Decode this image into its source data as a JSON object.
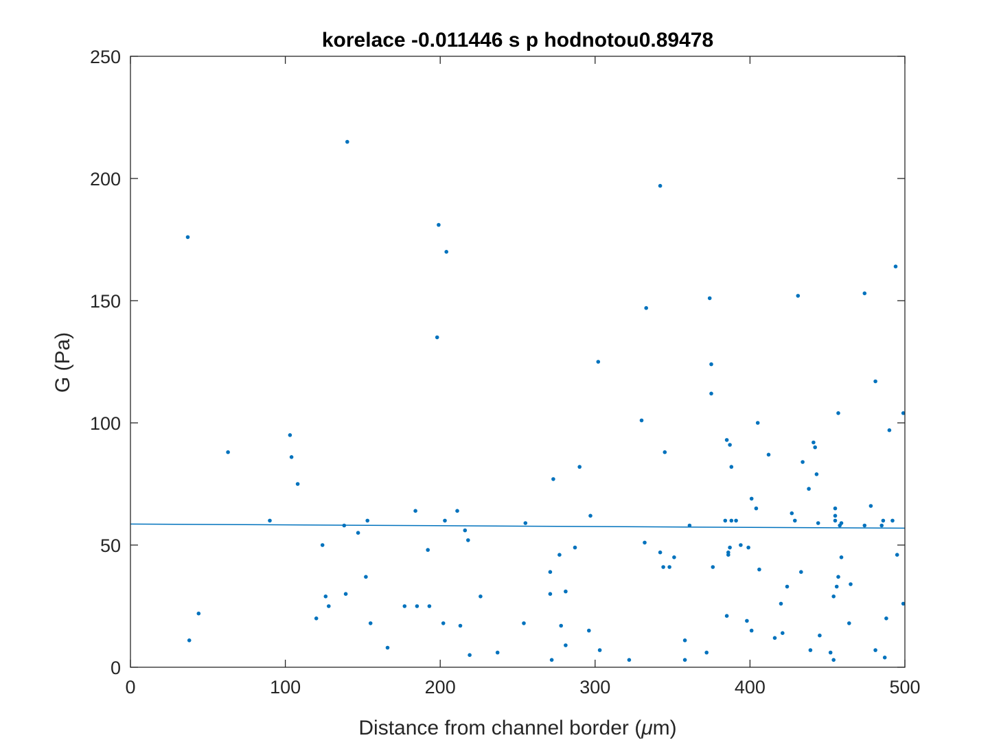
{
  "chart_data": {
    "type": "scatter",
    "title": "korelace -0.011446 s p hodnotou0.89478",
    "xlabel_pre": "Distance from channel border (",
    "xlabel_mu": "μ",
    "xlabel_post": "m)",
    "ylabel": "G (Pa)",
    "xlim": [
      0,
      500
    ],
    "ylim": [
      0,
      250
    ],
    "xticks": [
      0,
      100,
      200,
      300,
      400,
      500
    ],
    "yticks": [
      0,
      50,
      100,
      150,
      200,
      250
    ],
    "grid": false,
    "colors": {
      "points": "#0072bd",
      "fit_line": "#0072bd",
      "axes": "#262626"
    },
    "fit_line": {
      "x": [
        0,
        500
      ],
      "y": [
        58.6,
        56.9
      ]
    },
    "points": [
      {
        "x": 37,
        "y": 176
      },
      {
        "x": 38,
        "y": 11
      },
      {
        "x": 44,
        "y": 22
      },
      {
        "x": 63,
        "y": 88
      },
      {
        "x": 90,
        "y": 60
      },
      {
        "x": 103,
        "y": 95
      },
      {
        "x": 104,
        "y": 86
      },
      {
        "x": 108,
        "y": 75
      },
      {
        "x": 120,
        "y": 20
      },
      {
        "x": 124,
        "y": 50
      },
      {
        "x": 126,
        "y": 29
      },
      {
        "x": 128,
        "y": 25
      },
      {
        "x": 138,
        "y": 58
      },
      {
        "x": 139,
        "y": 30
      },
      {
        "x": 140,
        "y": 215
      },
      {
        "x": 147,
        "y": 55
      },
      {
        "x": 152,
        "y": 37
      },
      {
        "x": 153,
        "y": 60
      },
      {
        "x": 155,
        "y": 18
      },
      {
        "x": 166,
        "y": 8
      },
      {
        "x": 177,
        "y": 25
      },
      {
        "x": 184,
        "y": 64
      },
      {
        "x": 185,
        "y": 25
      },
      {
        "x": 192,
        "y": 48
      },
      {
        "x": 193,
        "y": 25
      },
      {
        "x": 198,
        "y": 135
      },
      {
        "x": 199,
        "y": 181
      },
      {
        "x": 202,
        "y": 18
      },
      {
        "x": 203,
        "y": 60
      },
      {
        "x": 204,
        "y": 170
      },
      {
        "x": 211,
        "y": 64
      },
      {
        "x": 213,
        "y": 17
      },
      {
        "x": 216,
        "y": 56
      },
      {
        "x": 218,
        "y": 52
      },
      {
        "x": 219,
        "y": 5
      },
      {
        "x": 226,
        "y": 29
      },
      {
        "x": 237,
        "y": 6
      },
      {
        "x": 255,
        "y": 59
      },
      {
        "x": 254,
        "y": 18
      },
      {
        "x": 271,
        "y": 39
      },
      {
        "x": 271,
        "y": 30
      },
      {
        "x": 272,
        "y": 3
      },
      {
        "x": 273,
        "y": 77
      },
      {
        "x": 277,
        "y": 46
      },
      {
        "x": 278,
        "y": 17
      },
      {
        "x": 281,
        "y": 31
      },
      {
        "x": 281,
        "y": 9
      },
      {
        "x": 287,
        "y": 49
      },
      {
        "x": 290,
        "y": 82
      },
      {
        "x": 296,
        "y": 15
      },
      {
        "x": 297,
        "y": 62
      },
      {
        "x": 302,
        "y": 125
      },
      {
        "x": 303,
        "y": 7
      },
      {
        "x": 322,
        "y": 3
      },
      {
        "x": 330,
        "y": 101
      },
      {
        "x": 332,
        "y": 51
      },
      {
        "x": 333,
        "y": 147
      },
      {
        "x": 342,
        "y": 197
      },
      {
        "x": 342,
        "y": 47
      },
      {
        "x": 344,
        "y": 41
      },
      {
        "x": 345,
        "y": 88
      },
      {
        "x": 348,
        "y": 41
      },
      {
        "x": 351,
        "y": 45
      },
      {
        "x": 358,
        "y": 3
      },
      {
        "x": 358,
        "y": 11
      },
      {
        "x": 361,
        "y": 58
      },
      {
        "x": 372,
        "y": 6
      },
      {
        "x": 374,
        "y": 151
      },
      {
        "x": 375,
        "y": 124
      },
      {
        "x": 375,
        "y": 112
      },
      {
        "x": 376,
        "y": 41
      },
      {
        "x": 384,
        "y": 60
      },
      {
        "x": 385,
        "y": 21
      },
      {
        "x": 385,
        "y": 93
      },
      {
        "x": 386,
        "y": 46
      },
      {
        "x": 386,
        "y": 47
      },
      {
        "x": 387,
        "y": 91
      },
      {
        "x": 387,
        "y": 49
      },
      {
        "x": 388,
        "y": 82
      },
      {
        "x": 388,
        "y": 60
      },
      {
        "x": 391,
        "y": 60
      },
      {
        "x": 394,
        "y": 50
      },
      {
        "x": 398,
        "y": 19
      },
      {
        "x": 399,
        "y": 49
      },
      {
        "x": 401,
        "y": 69
      },
      {
        "x": 401,
        "y": 15
      },
      {
        "x": 404,
        "y": 65
      },
      {
        "x": 405,
        "y": 100
      },
      {
        "x": 406,
        "y": 40
      },
      {
        "x": 412,
        "y": 87
      },
      {
        "x": 416,
        "y": 12
      },
      {
        "x": 420,
        "y": 26
      },
      {
        "x": 421,
        "y": 14
      },
      {
        "x": 424,
        "y": 33
      },
      {
        "x": 427,
        "y": 63
      },
      {
        "x": 429,
        "y": 60
      },
      {
        "x": 431,
        "y": 152
      },
      {
        "x": 433,
        "y": 39
      },
      {
        "x": 434,
        "y": 84
      },
      {
        "x": 438,
        "y": 73
      },
      {
        "x": 439,
        "y": 7
      },
      {
        "x": 441,
        "y": 92
      },
      {
        "x": 442,
        "y": 90
      },
      {
        "x": 443,
        "y": 79
      },
      {
        "x": 444,
        "y": 59
      },
      {
        "x": 445,
        "y": 13
      },
      {
        "x": 452,
        "y": 6
      },
      {
        "x": 454,
        "y": 3
      },
      {
        "x": 454,
        "y": 29
      },
      {
        "x": 455,
        "y": 65
      },
      {
        "x": 455,
        "y": 62
      },
      {
        "x": 455,
        "y": 60
      },
      {
        "x": 456,
        "y": 33
      },
      {
        "x": 457,
        "y": 37
      },
      {
        "x": 457,
        "y": 104
      },
      {
        "x": 458,
        "y": 58
      },
      {
        "x": 459,
        "y": 45
      },
      {
        "x": 459,
        "y": 59
      },
      {
        "x": 464,
        "y": 18
      },
      {
        "x": 465,
        "y": 34
      },
      {
        "x": 474,
        "y": 58
      },
      {
        "x": 474,
        "y": 153
      },
      {
        "x": 478,
        "y": 66
      },
      {
        "x": 481,
        "y": 117
      },
      {
        "x": 481,
        "y": 7
      },
      {
        "x": 485,
        "y": 58
      },
      {
        "x": 486,
        "y": 60
      },
      {
        "x": 487,
        "y": 4
      },
      {
        "x": 488,
        "y": 20
      },
      {
        "x": 490,
        "y": 97
      },
      {
        "x": 492,
        "y": 60
      },
      {
        "x": 494,
        "y": 164
      },
      {
        "x": 495,
        "y": 46
      },
      {
        "x": 499,
        "y": 104
      },
      {
        "x": 499,
        "y": 26
      }
    ]
  }
}
